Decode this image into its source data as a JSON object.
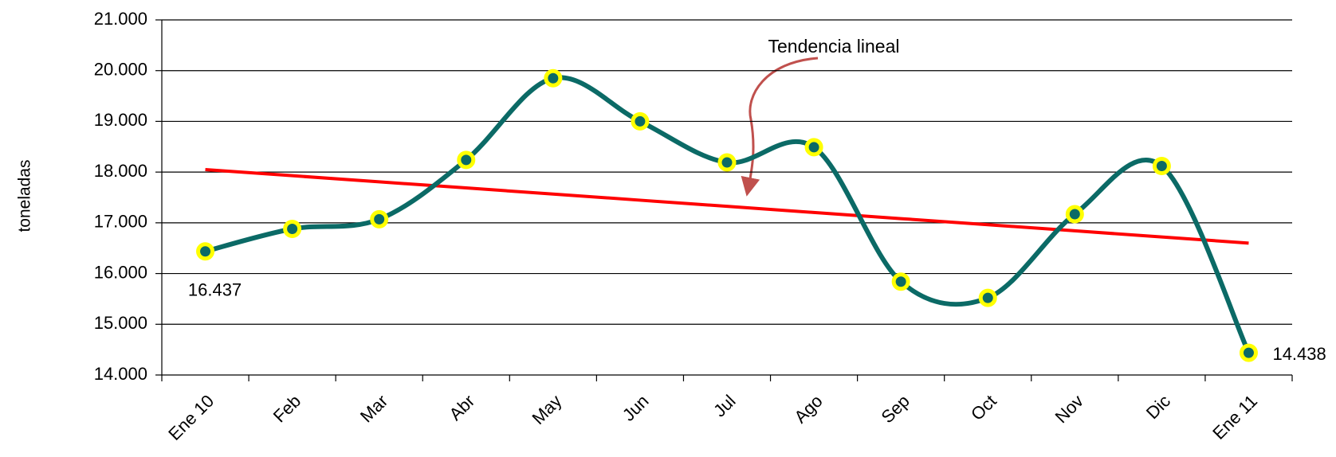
{
  "chart_data": {
    "type": "line",
    "y_label": "toneladas",
    "annotation": "Tendencia lineal",
    "categories": [
      "Ene 10",
      "Feb",
      "Mar",
      "Abr",
      "May",
      "Jun",
      "Jul",
      "Ago",
      "Sep",
      "Oct",
      "Nov",
      "Dic",
      "Ene 11"
    ],
    "series": [
      {
        "color": "#0b6a66",
        "marker_color": "#ffff00",
        "values": [
          16437,
          16880,
          17070,
          18240,
          19850,
          19000,
          18190,
          18490,
          15840,
          15520,
          17170,
          18120,
          14438
        ],
        "value_labels": [
          "16.437",
          null,
          null,
          null,
          null,
          null,
          null,
          null,
          null,
          null,
          null,
          null,
          "14.438"
        ]
      }
    ],
    "trend": {
      "color": "#ff0000",
      "values": [
        18050,
        17929,
        17808,
        17688,
        17567,
        17446,
        17325,
        17204,
        17083,
        16963,
        16842,
        16721,
        16600
      ]
    },
    "ylim": [
      14000,
      21000
    ],
    "yticks": [
      {
        "value": 14000,
        "label": "14.000"
      },
      {
        "value": 15000,
        "label": "15.000"
      },
      {
        "value": 16000,
        "label": "16.000"
      },
      {
        "value": 17000,
        "label": "17.000"
      },
      {
        "value": 18000,
        "label": "18.000"
      },
      {
        "value": 19000,
        "label": "19.000"
      },
      {
        "value": 20000,
        "label": "20.000"
      },
      {
        "value": 21000,
        "label": "21.000"
      }
    ],
    "grid": true
  }
}
